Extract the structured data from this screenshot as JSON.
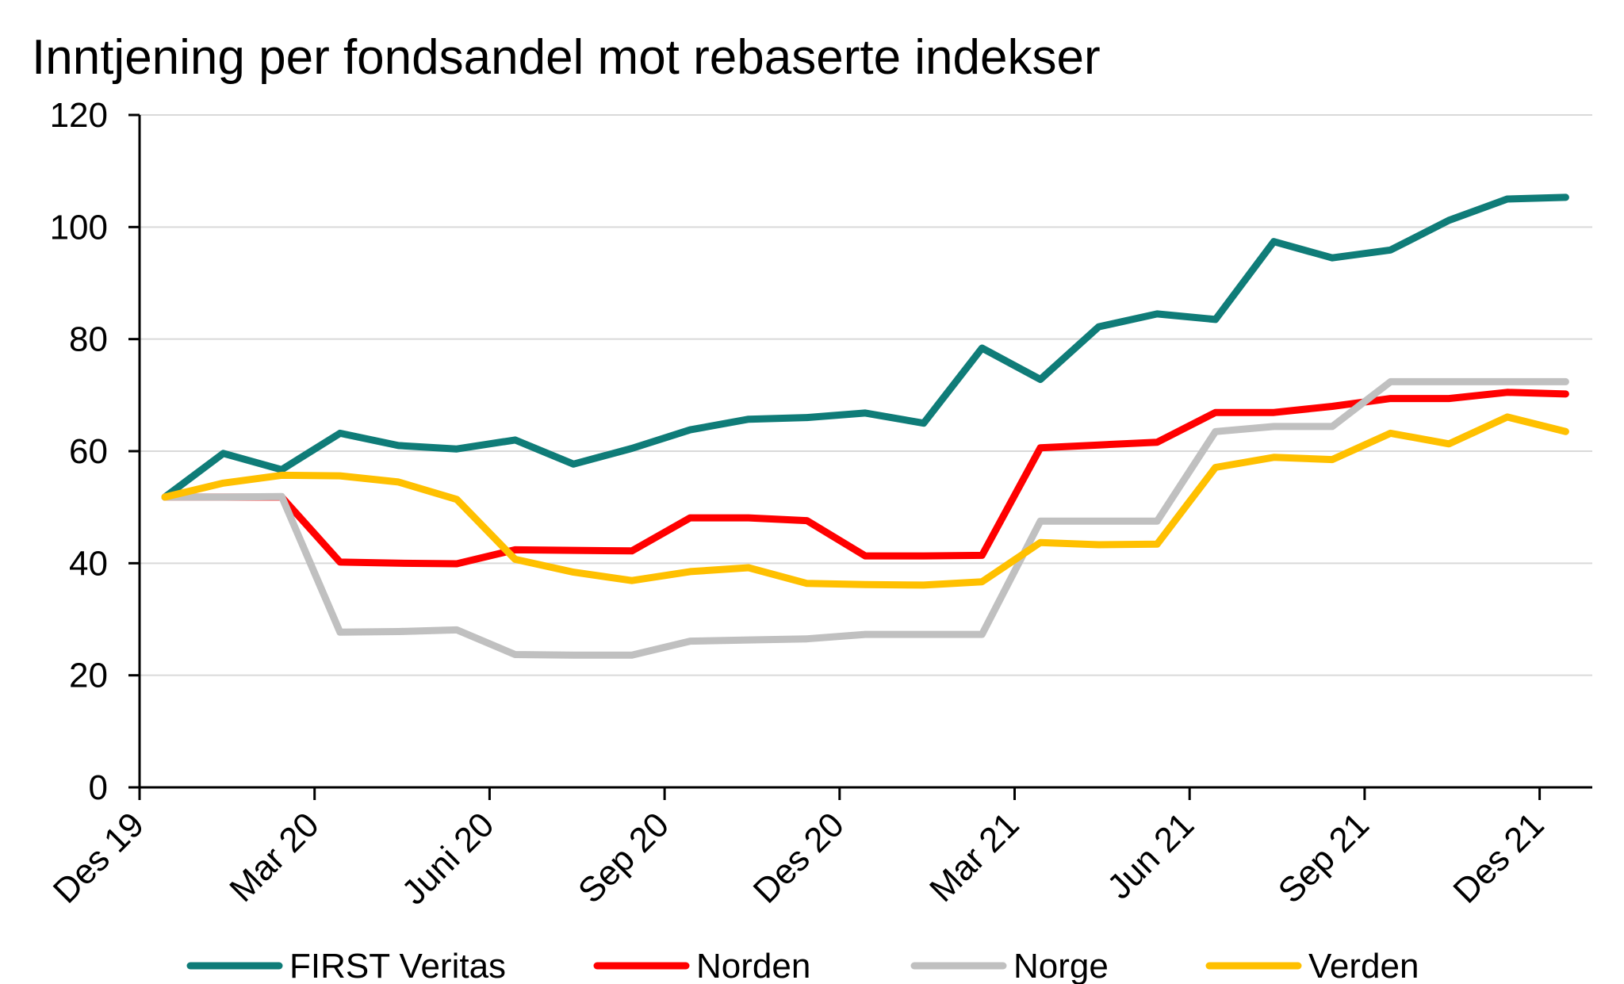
{
  "chart_data": {
    "type": "line",
    "title": "Inntjening per fondsandel mot rebaserte indekser",
    "xlabel": "",
    "ylabel": "",
    "ylim": [
      0,
      120
    ],
    "yticks": [
      "0",
      "20",
      "40",
      "60",
      "80",
      "100",
      "120"
    ],
    "xtick_labels": [
      "Des 19",
      "Mar 20",
      "Juni 20",
      "Sep 20",
      "Des 20",
      "Mar 21",
      "Jun 21",
      "Sep 21",
      "Des 21"
    ],
    "x": [
      "2019-12",
      "2020-01",
      "2020-02",
      "2020-03",
      "2020-04",
      "2020-05",
      "2020-06",
      "2020-07",
      "2020-08",
      "2020-09",
      "2020-10",
      "2020-11",
      "2020-12",
      "2021-01",
      "2021-02",
      "2021-03",
      "2021-04",
      "2021-05",
      "2021-06",
      "2021-07",
      "2021-08",
      "2021-09",
      "2021-10",
      "2021-11",
      "2021-12"
    ],
    "grid": true,
    "legend_position": "bottom",
    "series": [
      {
        "name": "FIRST Veritas",
        "color": "#0F7C78",
        "values": [
          51.8,
          59.6,
          56.7,
          63.2,
          61.0,
          60.4,
          62.0,
          57.7,
          60.5,
          63.8,
          65.7,
          66.0,
          66.8,
          65.0,
          78.4,
          72.8,
          82.2,
          84.5,
          83.5,
          97.4,
          94.5,
          95.9,
          101.2,
          105.0,
          105.3
        ]
      },
      {
        "name": "Norden",
        "color": "#FF0000",
        "values": [
          51.8,
          51.8,
          51.8,
          40.2,
          40.0,
          39.9,
          42.4,
          42.3,
          42.2,
          48.1,
          48.1,
          47.6,
          41.3,
          41.3,
          41.4,
          60.6,
          61.1,
          61.6,
          66.9,
          66.9,
          68.0,
          69.4,
          69.4,
          70.5,
          70.2
        ]
      },
      {
        "name": "Norge",
        "color": "#C0C0C0",
        "values": [
          51.8,
          51.8,
          51.9,
          27.7,
          27.8,
          28.1,
          23.7,
          23.6,
          23.6,
          26.1,
          26.3,
          26.5,
          27.3,
          27.3,
          27.3,
          47.5,
          47.5,
          47.5,
          63.5,
          64.4,
          64.4,
          72.4,
          72.4,
          72.4,
          72.4
        ]
      },
      {
        "name": "Verden",
        "color": "#FFC000",
        "values": [
          51.8,
          54.3,
          55.7,
          55.6,
          54.5,
          51.4,
          40.7,
          38.4,
          36.9,
          38.5,
          39.2,
          36.4,
          36.2,
          36.1,
          36.7,
          43.7,
          43.3,
          43.4,
          57.1,
          58.9,
          58.5,
          63.2,
          61.3,
          66.1,
          63.5
        ]
      }
    ]
  }
}
